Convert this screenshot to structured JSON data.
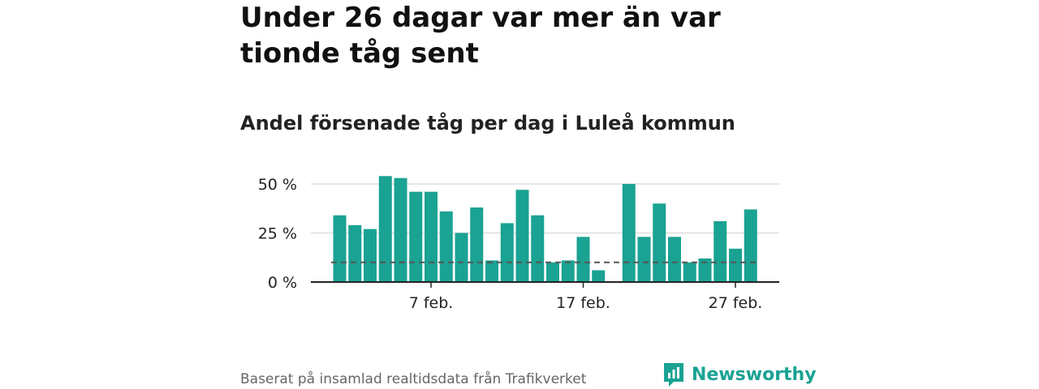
{
  "title": "Under 26 dagar var mer än var tionde tåg sent",
  "subtitle": "Andel försenade tåg per dag i Luleå kommun",
  "source": "Baserat på insamlad realtidsdata från Trafikverket",
  "brand": {
    "name": "Newsworthy",
    "icon": "newsworthy-logo-icon"
  },
  "colors": {
    "bar": "#1aa293",
    "reference": "#555555",
    "grid": "#dddddd",
    "axis": "#222222",
    "brand": "#1aa293"
  },
  "chart_data": {
    "type": "bar",
    "x": [
      1,
      2,
      3,
      4,
      5,
      6,
      7,
      8,
      9,
      10,
      11,
      12,
      13,
      14,
      15,
      16,
      17,
      18,
      19,
      20,
      21,
      22,
      23,
      24,
      25,
      26,
      27,
      28,
      29
    ],
    "values": [
      34,
      29,
      27,
      54,
      53,
      46,
      46,
      36,
      25,
      38,
      11,
      30,
      47,
      34,
      10,
      11,
      23,
      6,
      null,
      50,
      23,
      40,
      23,
      10,
      12,
      31,
      17,
      37,
      null
    ],
    "y_ticks": [
      0,
      25,
      50
    ],
    "y_tick_labels": [
      "0 %",
      "25 %",
      "50 %"
    ],
    "x_ticks": [
      7,
      17,
      27
    ],
    "x_tick_labels": [
      "7 feb.",
      "17 feb.",
      "27 feb."
    ],
    "ylim": [
      0,
      57
    ],
    "reference_line": 10,
    "grid": true
  }
}
